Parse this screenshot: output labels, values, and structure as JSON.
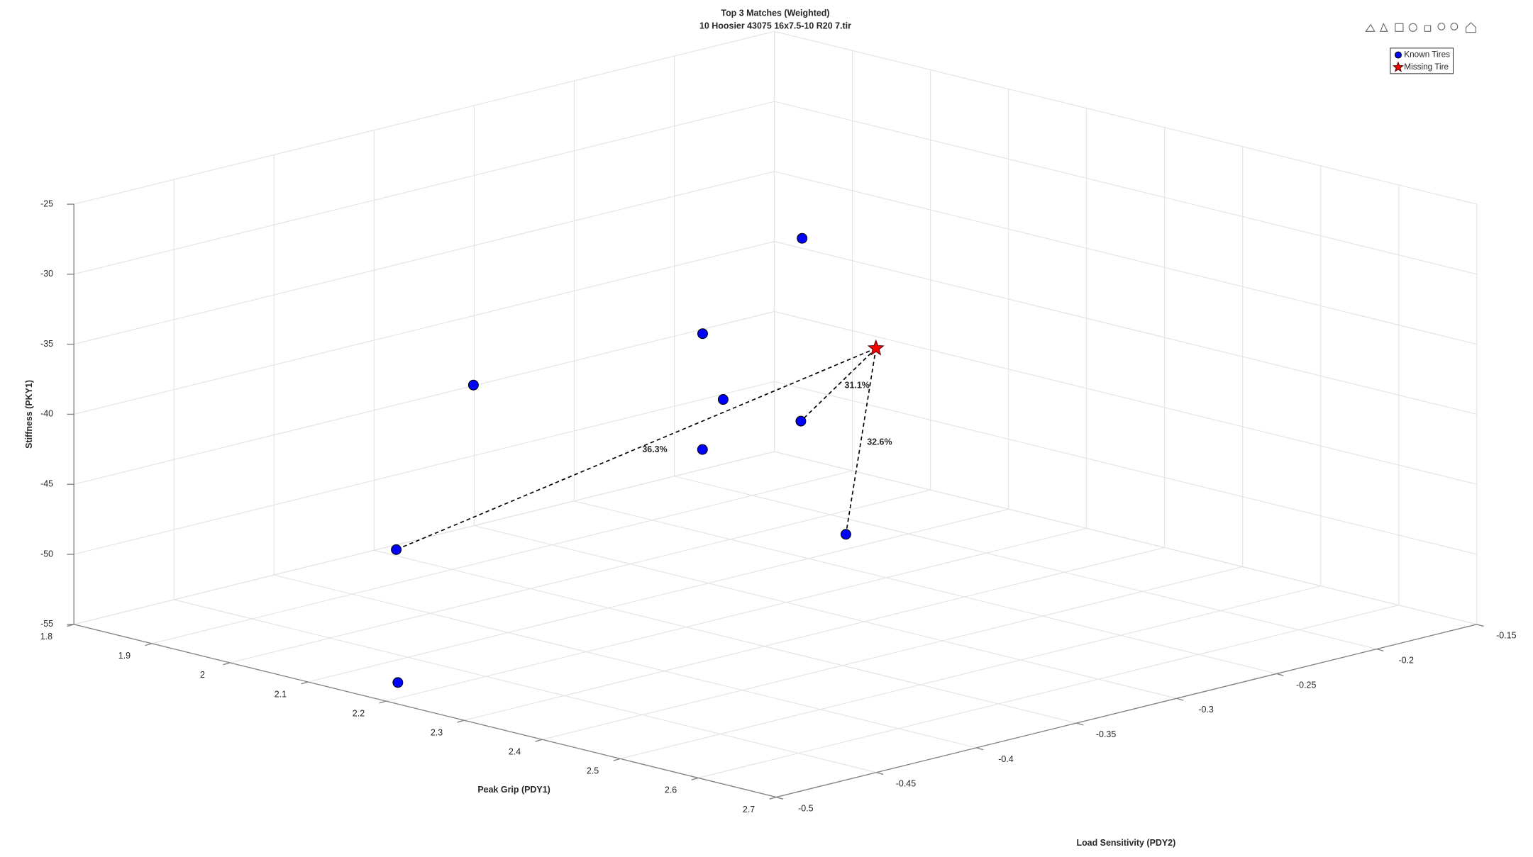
{
  "chart_data": {
    "type": "scatter3",
    "title": "Top 3 Matches (Weighted)",
    "subtitle": "10 Hoosier 43075 16x7.5-10 R20 7.tir",
    "xlabel": "Peak Grip (PDY1)",
    "ylabel": "Load Sensitivity (PDY2)",
    "zlabel": "Stiffness (PKY1)",
    "xlim": [
      1.8,
      2.7
    ],
    "ylim": [
      -0.5,
      -0.15
    ],
    "zlim": [
      -55,
      -25
    ],
    "xticks": [
      1.8,
      1.9,
      2,
      2.1,
      2.2,
      2.3,
      2.4,
      2.5,
      2.6,
      2.7
    ],
    "yticks": [
      -0.5,
      -0.45,
      -0.4,
      -0.35,
      -0.3,
      -0.25,
      -0.2,
      -0.15
    ],
    "zticks": [
      -55,
      -50,
      -45,
      -40,
      -35,
      -30,
      -25
    ],
    "grid": true,
    "legend": "upper right",
    "series": [
      {
        "name": "Known Tires",
        "color": "#0000ff",
        "marker": "circle",
        "x": [
          2.192,
          2.103,
          2.035,
          2.178,
          2.175,
          2.131,
          2.031,
          2.225,
          2.192
        ],
        "y": [
          -0.289,
          -0.304,
          -0.392,
          -0.323,
          -0.283,
          -0.315,
          -0.429,
          -0.28,
          -0.491
        ],
        "z": [
          -29.5,
          -37,
          -38.5,
          -40,
          -43,
          -44.5,
          -49,
          -50.5,
          -54.1
        ]
      },
      {
        "name": "Missing Tire",
        "color": "#ff0000",
        "marker": "star",
        "x": [
          2.143
        ],
        "y": [
          -0.233
        ],
        "z": [
          -40
        ]
      }
    ],
    "matches": [
      {
        "tire": 6,
        "weight": 36.3,
        "label": "36.3%"
      },
      {
        "tire": 4,
        "weight": 31.1,
        "label": "31.1%"
      },
      {
        "tire": 7,
        "weight": 32.6,
        "label": "32.6%"
      }
    ]
  }
}
